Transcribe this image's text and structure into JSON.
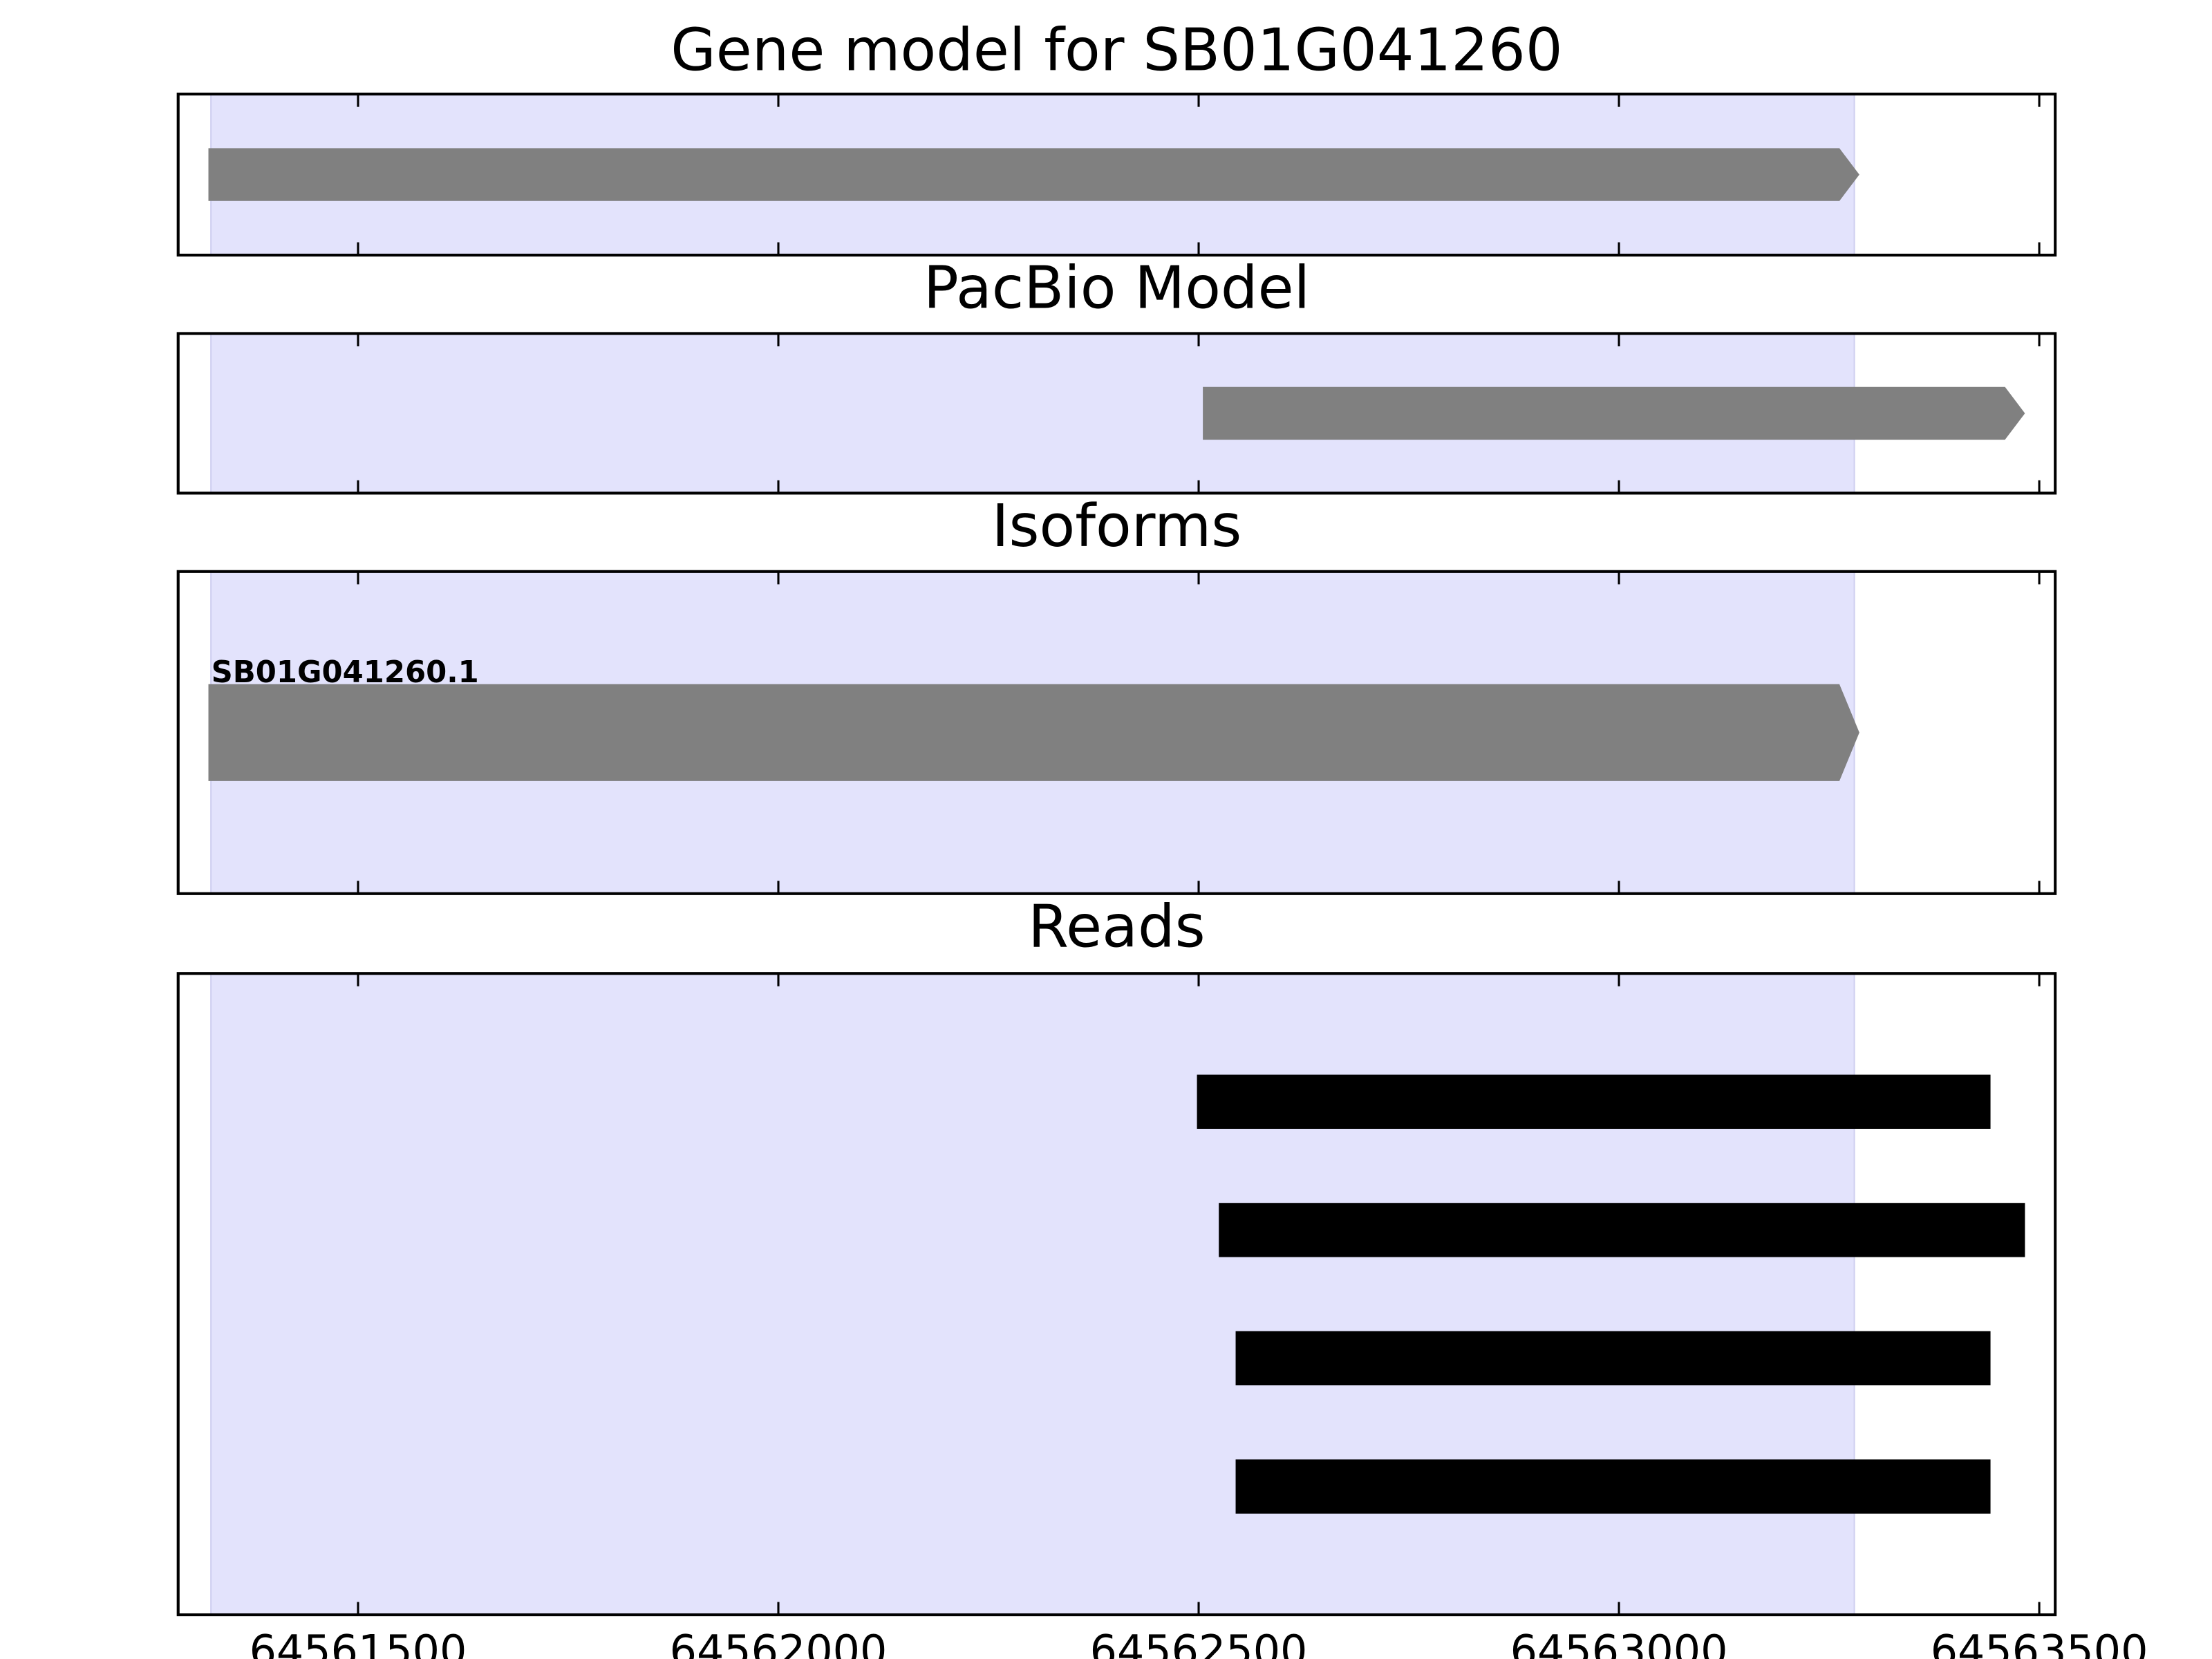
{
  "chart_data": [
    {
      "type": "track",
      "title": "Gene model for SB01G041260",
      "xlim": [
        64561286,
        64563519
      ],
      "xticks": [
        64561500,
        64562000,
        64562500,
        64563000,
        64563500
      ],
      "tick_labels": false,
      "highlight": [
        64561325,
        64563280
      ],
      "highlight_color": "#e3e3fc",
      "color": "#808080",
      "arrow": true,
      "starts": [
        64561322
      ],
      "ends": [
        64563286
      ]
    },
    {
      "type": "track",
      "title": "PacBio Model",
      "xlim": [
        64561286,
        64563519
      ],
      "xticks": [
        64561500,
        64562000,
        64562500,
        64563000,
        64563500
      ],
      "tick_labels": false,
      "highlight": [
        64561325,
        64563280
      ],
      "highlight_color": "#e3e3fc",
      "color": "#808080",
      "arrow": true,
      "starts": [
        64562505
      ],
      "ends": [
        64563483
      ]
    },
    {
      "type": "track",
      "title": "Isoforms",
      "xlim": [
        64561286,
        64563519
      ],
      "xticks": [
        64561500,
        64562000,
        64562500,
        64563000,
        64563500
      ],
      "tick_labels": false,
      "highlight": [
        64561325,
        64563280
      ],
      "highlight_color": "#e3e3fc",
      "color": "#808080",
      "arrow": true,
      "starts": [
        64561322
      ],
      "ends": [
        64563286
      ],
      "labels": [
        "SB01G041260.1"
      ]
    },
    {
      "type": "track",
      "title": "Reads",
      "xlim": [
        64561286,
        64563519
      ],
      "xticks": [
        64561500,
        64562000,
        64562500,
        64563000,
        64563500
      ],
      "tick_labels": true,
      "highlight": [
        64561325,
        64563280
      ],
      "highlight_color": "#e3e3fc",
      "color": "#000000",
      "arrow": false,
      "starts": [
        64562498,
        64562524,
        64562544,
        64562544
      ],
      "ends": [
        64563442,
        64563483,
        64563442,
        64563442
      ]
    }
  ]
}
